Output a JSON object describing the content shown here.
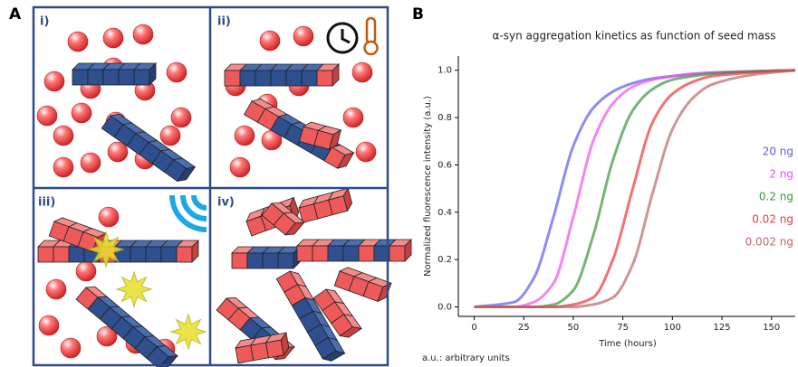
{
  "panel_a": {
    "label": "A",
    "panels": [
      "i)",
      "ii)",
      "iii)",
      "iv)"
    ]
  },
  "panel_b": {
    "label": "B"
  },
  "chart_data": {
    "type": "line",
    "title": "α-syn aggregation kinetics as function of seed mass",
    "x_label": "Time (hours)",
    "y_label": "Normalized fluorescence intensity (a.u.)",
    "note": "a.u.: arbitrary units",
    "x": [
      0,
      20,
      30,
      40,
      50,
      60,
      70,
      80,
      90,
      100,
      110,
      120,
      140,
      162
    ],
    "series": [
      {
        "name": "20 ng",
        "color": "#5b5bf0",
        "values": [
          0,
          0.02,
          0.12,
          0.38,
          0.68,
          0.84,
          0.91,
          0.945,
          0.965,
          0.975,
          0.983,
          0.99,
          0.995,
          1.0
        ]
      },
      {
        "name": "2 ng",
        "color": "#f050f0",
        "values": [
          0,
          0,
          0.02,
          0.1,
          0.38,
          0.7,
          0.86,
          0.93,
          0.96,
          0.975,
          0.985,
          0.99,
          0.995,
          1.0
        ]
      },
      {
        "name": "0.2 ng",
        "color": "#3a963a",
        "values": [
          0,
          0,
          0,
          0.01,
          0.07,
          0.3,
          0.62,
          0.83,
          0.92,
          0.96,
          0.975,
          0.985,
          0.995,
          1.0
        ]
      },
      {
        "name": "0.02 ng",
        "color": "#e83838",
        "values": [
          0,
          0,
          0,
          0,
          0.01,
          0.04,
          0.2,
          0.5,
          0.78,
          0.9,
          0.95,
          0.975,
          0.99,
          1.0
        ]
      },
      {
        "name": "0.002 ng",
        "color": "#b86a6a",
        "values": [
          0,
          0,
          0,
          0,
          0,
          0.01,
          0.04,
          0.18,
          0.48,
          0.75,
          0.88,
          0.94,
          0.98,
          1.0
        ]
      }
    ],
    "xlim": [
      -8,
      162
    ],
    "ylim": [
      -0.04,
      1.06
    ],
    "xticks": [
      0,
      25,
      50,
      75,
      100,
      125,
      150
    ],
    "yticks": [
      {
        "value": 0,
        "label": "0.0"
      },
      0.2,
      0.4,
      0.6,
      0.8,
      {
        "value": 1,
        "label": "1.0"
      }
    ],
    "grid": false
  }
}
